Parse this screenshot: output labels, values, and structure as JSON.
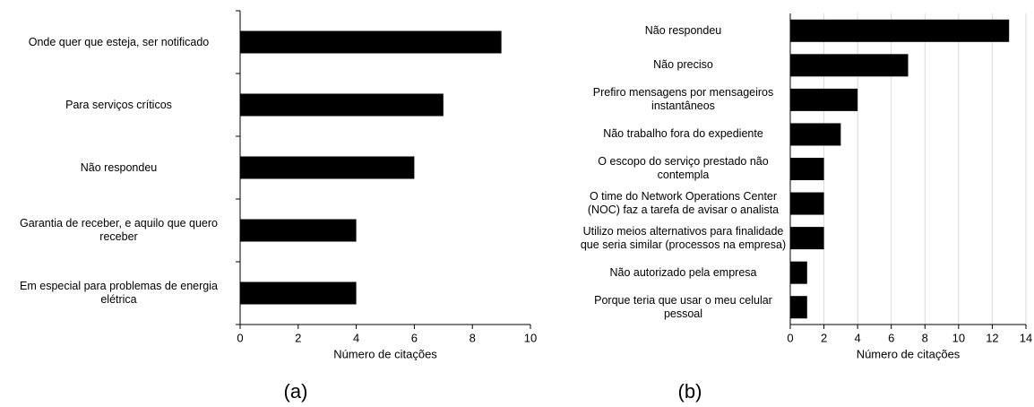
{
  "chart_data": [
    {
      "type": "bar",
      "orientation": "horizontal",
      "caption": "(a)",
      "xlabel": "Número de citações",
      "categories": [
        "Onde quer que esteja, ser notificado",
        "Para serviços críticos",
        "Não respondeu",
        "Garantia de receber, e aquilo que quero receber",
        "Em especial para problemas de energia elétrica"
      ],
      "values": [
        9,
        7,
        6,
        4,
        4
      ],
      "color": "#000000",
      "xlim": [
        0,
        10
      ],
      "xticks": [
        0,
        2,
        4,
        6,
        8,
        10
      ],
      "grid": false
    },
    {
      "type": "bar",
      "orientation": "horizontal",
      "caption": "(b)",
      "xlabel": "Número  de citações",
      "categories": [
        "Não respondeu",
        "Não preciso",
        "Prefiro mensagens por mensageiros instantâneos",
        "Não trabalho fora do expediente",
        "O escopo do serviço prestado não contempla",
        "O time do Network Operations Center (NOC) faz a tarefa de avisar o analista",
        "Utilizo meios alternativos para finalidade que seria similar (processos na empresa)",
        "Não autorizado pela empresa",
        "Porque teria que usar o meu celular pessoal"
      ],
      "values": [
        13,
        7,
        4,
        3,
        2,
        2,
        2,
        1,
        1
      ],
      "color": "#000000",
      "xlim": [
        0,
        14
      ],
      "xticks": [
        0,
        2,
        4,
        6,
        8,
        10,
        12,
        14
      ],
      "grid": true
    }
  ]
}
